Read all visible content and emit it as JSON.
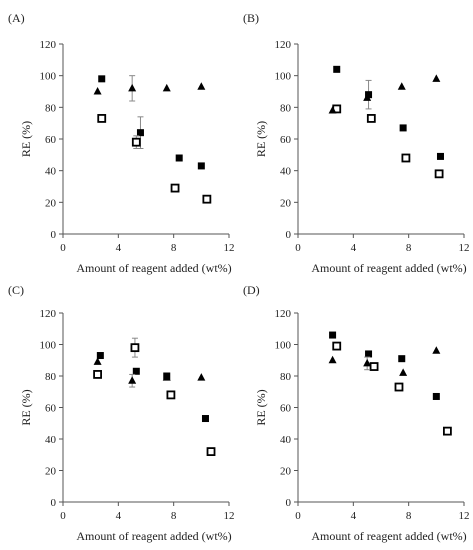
{
  "chart_data": [
    {
      "panel": "(A)",
      "type": "scatter",
      "xlabel": "Amount of reagent added (wt%)",
      "ylabel": "RE (%)",
      "xlim": [
        0,
        12
      ],
      "ylim": [
        0,
        120
      ],
      "xticks": [
        "0",
        "4",
        "8",
        "12"
      ],
      "yticks": [
        "0",
        "20",
        "40",
        "60",
        "80",
        "100",
        "120"
      ],
      "series": [
        {
          "marker": "square-filled",
          "points": [
            [
              2.8,
              98
            ],
            [
              5.6,
              64
            ],
            [
              8.4,
              48
            ],
            [
              10,
              43
            ]
          ],
          "errors": [
            0,
            10,
            0,
            0
          ]
        },
        {
          "marker": "square-open",
          "points": [
            [
              2.8,
              73
            ],
            [
              5.3,
              58
            ],
            [
              8.1,
              29
            ],
            [
              10.4,
              22
            ]
          ],
          "errors": [
            0,
            4,
            0,
            0
          ]
        },
        {
          "marker": "triangle-filled",
          "points": [
            [
              2.5,
              90
            ],
            [
              5,
              92
            ],
            [
              7.5,
              92
            ],
            [
              10,
              93
            ]
          ],
          "errors": [
            0,
            8,
            0,
            0
          ]
        }
      ]
    },
    {
      "panel": "(B)",
      "type": "scatter",
      "xlabel": "Amount of reagent added (wt%)",
      "ylabel": "RE (%)",
      "xlim": [
        0,
        12
      ],
      "ylim": [
        0,
        120
      ],
      "xticks": [
        "0",
        "4",
        "8",
        "12"
      ],
      "yticks": [
        "0",
        "20",
        "40",
        "60",
        "80",
        "100",
        "120"
      ],
      "series": [
        {
          "marker": "square-filled",
          "points": [
            [
              2.8,
              104
            ],
            [
              5.1,
              88
            ],
            [
              7.6,
              67
            ],
            [
              10.3,
              49
            ]
          ],
          "errors": [
            0,
            9,
            0,
            0
          ]
        },
        {
          "marker": "square-open",
          "points": [
            [
              2.8,
              79
            ],
            [
              5.3,
              73
            ],
            [
              7.8,
              48
            ],
            [
              10.2,
              38
            ]
          ],
          "errors": [
            0,
            0,
            0,
            0
          ]
        },
        {
          "marker": "triangle-filled",
          "points": [
            [
              2.5,
              78
            ],
            [
              5,
              86
            ],
            [
              7.5,
              93
            ],
            [
              10,
              98
            ]
          ],
          "errors": [
            0,
            0,
            0,
            0
          ]
        }
      ]
    },
    {
      "panel": "(C)",
      "type": "scatter",
      "xlabel": "Amount of reagent added (wt%)",
      "ylabel": "RE (%)",
      "xlim": [
        0,
        12
      ],
      "ylim": [
        0,
        120
      ],
      "xticks": [
        "0",
        "4",
        "8",
        "12"
      ],
      "yticks": [
        "0",
        "20",
        "40",
        "60",
        "80",
        "100",
        "120"
      ],
      "series": [
        {
          "marker": "square-filled",
          "points": [
            [
              2.7,
              93
            ],
            [
              5.3,
              83
            ],
            [
              7.5,
              80
            ],
            [
              10.3,
              53
            ]
          ],
          "errors": [
            0,
            0,
            0,
            0
          ]
        },
        {
          "marker": "square-open",
          "points": [
            [
              2.5,
              81
            ],
            [
              5.2,
              98
            ],
            [
              7.8,
              68
            ],
            [
              10.7,
              32
            ]
          ],
          "errors": [
            0,
            6,
            0,
            0
          ]
        },
        {
          "marker": "triangle-filled",
          "points": [
            [
              2.5,
              89
            ],
            [
              5,
              77
            ],
            [
              7.5,
              79
            ],
            [
              10,
              79
            ]
          ],
          "errors": [
            0,
            4,
            0,
            0
          ]
        }
      ]
    },
    {
      "panel": "(D)",
      "type": "scatter",
      "xlabel": "Amount of reagent added (wt%)",
      "ylabel": "RE (%)",
      "xlim": [
        0,
        12
      ],
      "ylim": [
        0,
        120
      ],
      "xticks": [
        "0",
        "4",
        "8",
        "12"
      ],
      "yticks": [
        "0",
        "20",
        "40",
        "60",
        "80",
        "100",
        "120"
      ],
      "series": [
        {
          "marker": "square-filled",
          "points": [
            [
              2.5,
              106
            ],
            [
              5.1,
              94
            ],
            [
              7.5,
              91
            ],
            [
              10,
              67
            ]
          ],
          "errors": [
            0,
            0,
            0,
            0
          ]
        },
        {
          "marker": "square-open",
          "points": [
            [
              2.8,
              99
            ],
            [
              5.5,
              86
            ],
            [
              7.3,
              73
            ],
            [
              10.8,
              45
            ]
          ],
          "errors": [
            0,
            0,
            0,
            0
          ]
        },
        {
          "marker": "triangle-filled",
          "points": [
            [
              2.5,
              90
            ],
            [
              5,
              88
            ],
            [
              7.6,
              82
            ],
            [
              10,
              96
            ]
          ],
          "errors": [
            0,
            4,
            0,
            0
          ]
        }
      ]
    }
  ]
}
